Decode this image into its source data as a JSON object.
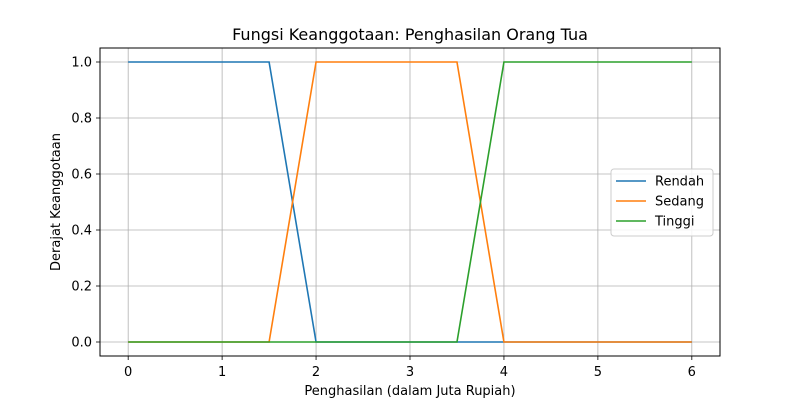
{
  "chart_data": {
    "type": "line",
    "title": "Fungsi Keanggotaan: Penghasilan Orang Tua",
    "xlabel": "Penghasilan (dalam Juta Rupiah)",
    "ylabel": "Derajat Keanggotaan",
    "xlim": [
      -0.3,
      6.3
    ],
    "ylim": [
      -0.05,
      1.05
    ],
    "xticks": [
      0,
      1,
      2,
      3,
      4,
      5,
      6
    ],
    "xtick_labels": [
      "0",
      "1",
      "2",
      "3",
      "4",
      "5",
      "6"
    ],
    "yticks": [
      0.0,
      0.2,
      0.4,
      0.6,
      0.8,
      1.0
    ],
    "ytick_labels": [
      "0.0",
      "0.2",
      "0.4",
      "0.6",
      "0.8",
      "1.0"
    ],
    "grid": true,
    "legend_position": "center-right",
    "series": [
      {
        "name": "Rendah",
        "color": "#1f77b4",
        "x": [
          0,
          1.5,
          2,
          4,
          6
        ],
        "y": [
          1,
          1,
          0,
          0,
          0
        ]
      },
      {
        "name": "Sedang",
        "color": "#ff7f0e",
        "x": [
          0,
          1.5,
          2,
          3.5,
          4,
          6
        ],
        "y": [
          0,
          0,
          1,
          1,
          0,
          0
        ]
      },
      {
        "name": "Tinggi",
        "color": "#2ca02c",
        "x": [
          0,
          3.5,
          4,
          6
        ],
        "y": [
          0,
          0,
          1,
          1
        ]
      }
    ]
  }
}
